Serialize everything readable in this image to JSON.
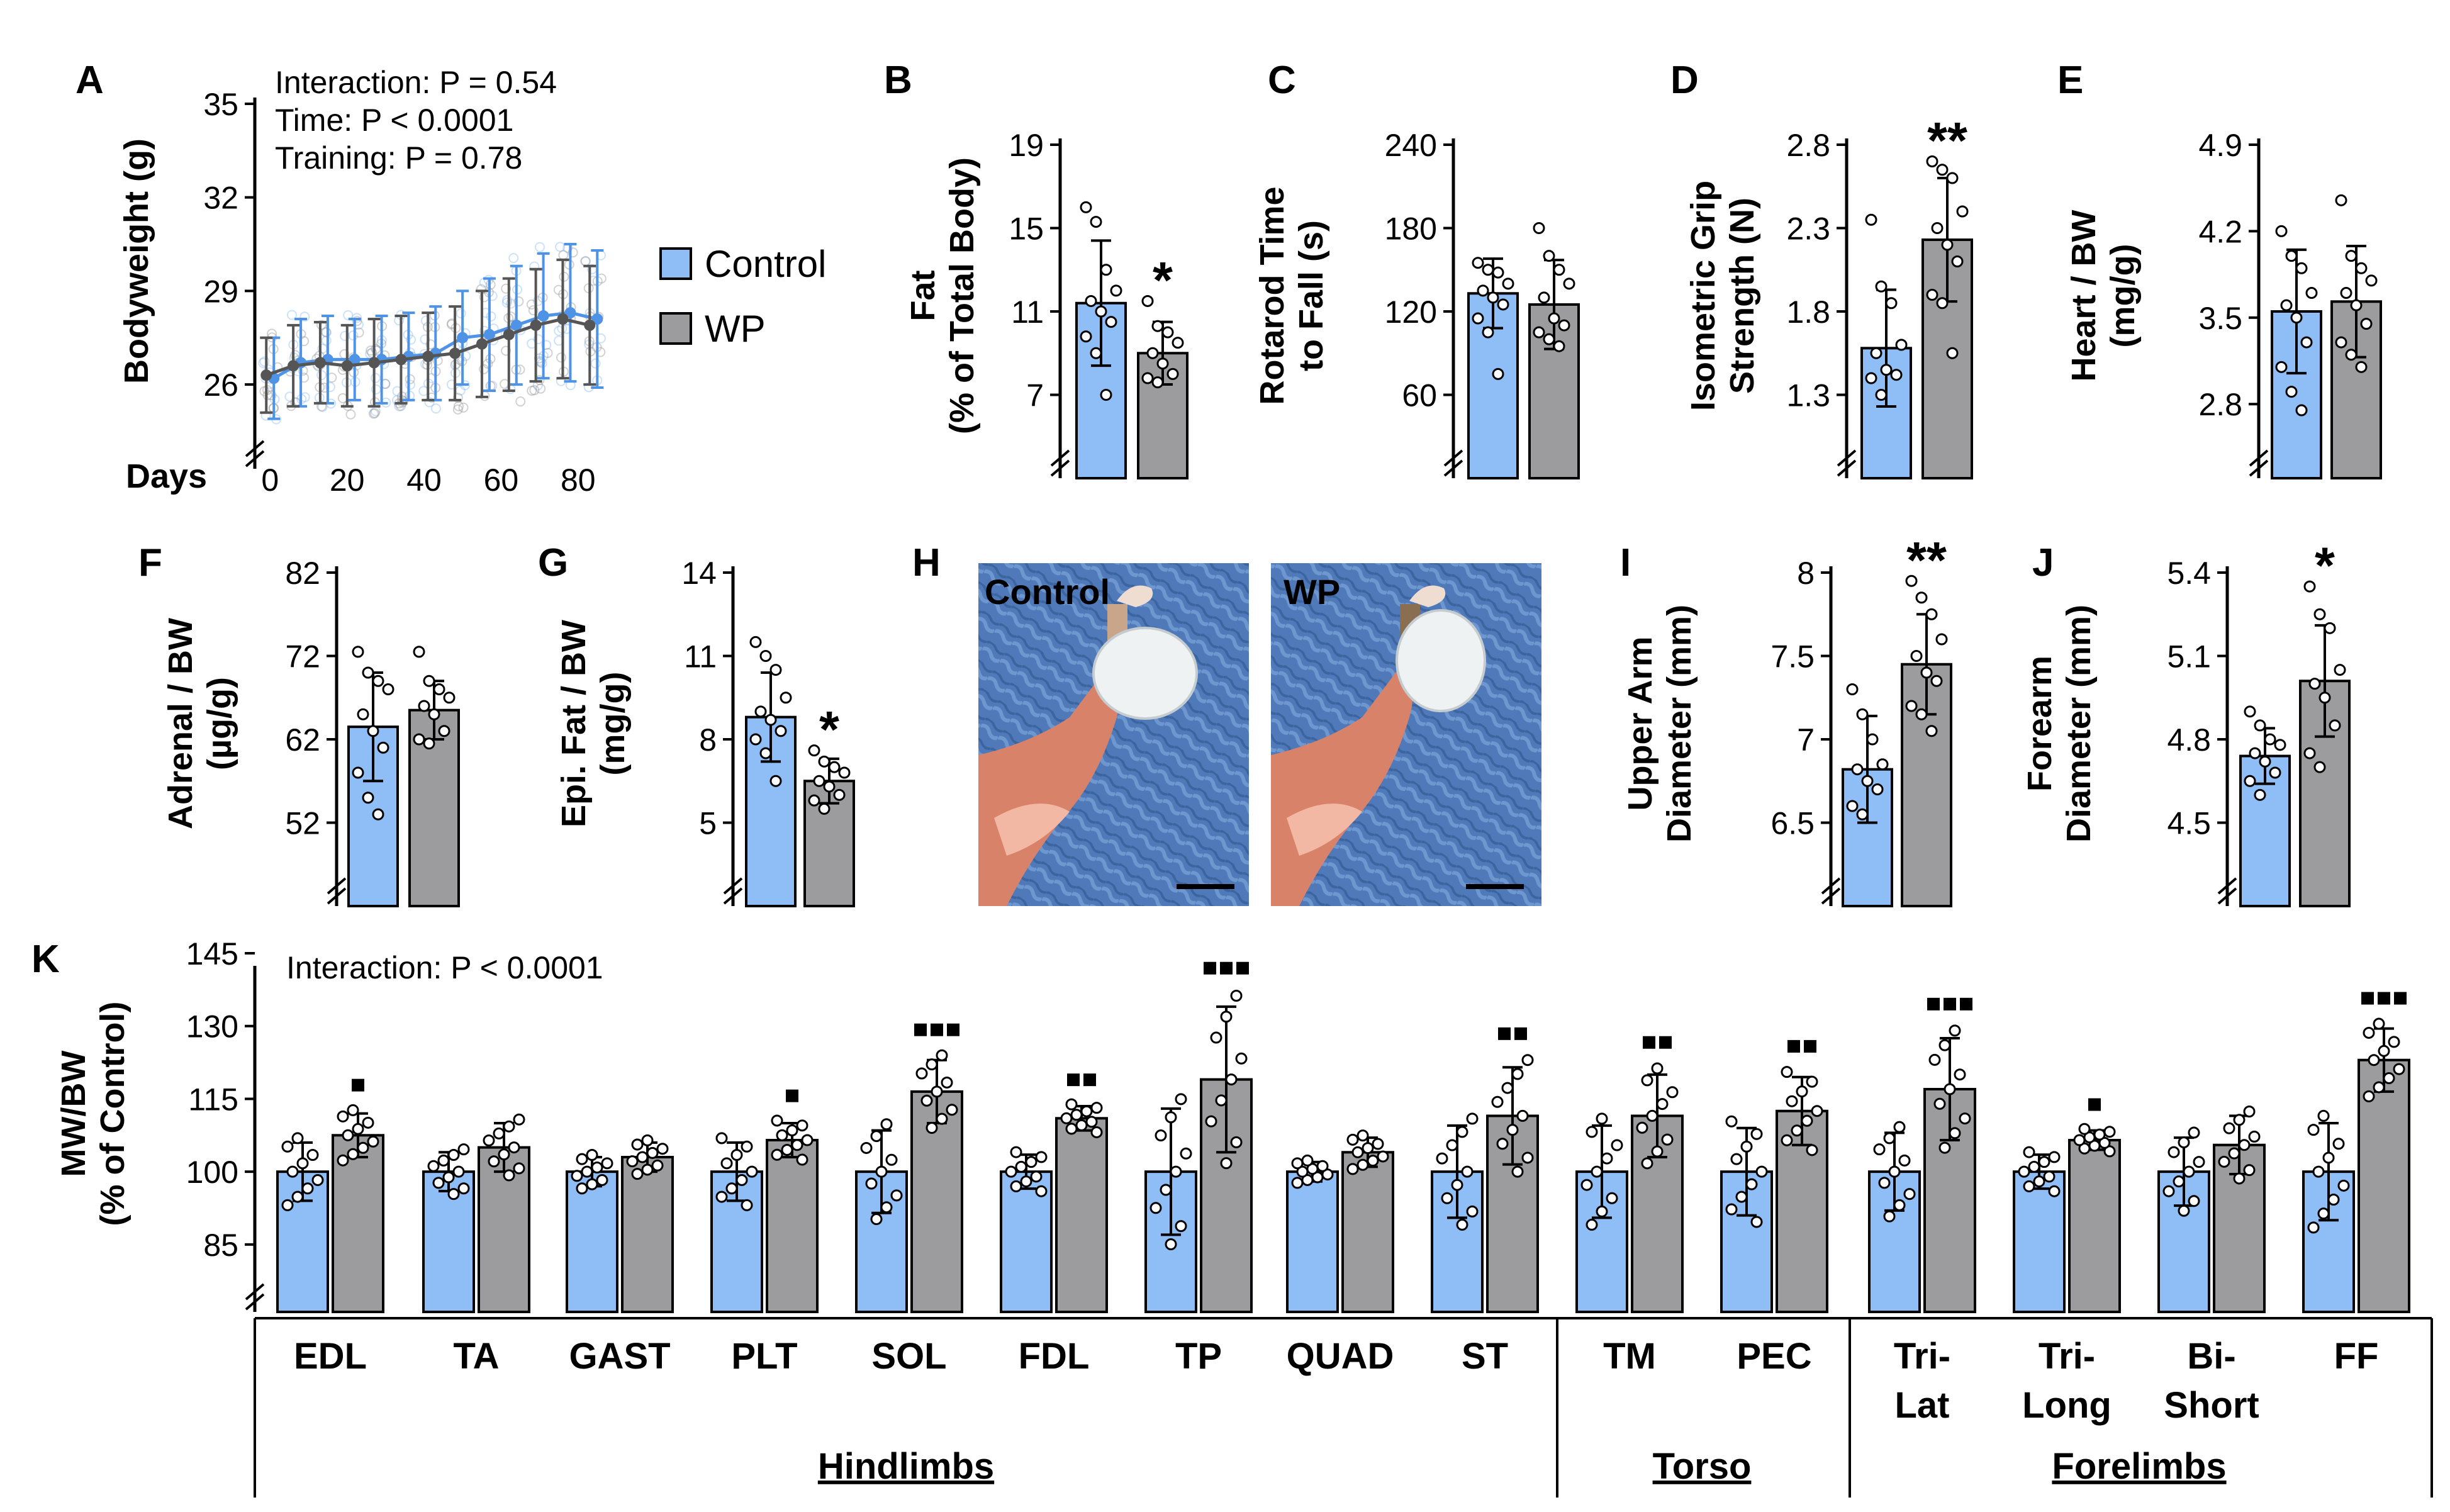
{
  "colors": {
    "control": "#8fbdf5",
    "wp": "#9c9c9e",
    "axis": "#000000",
    "dots": "#ffffff"
  },
  "legend": {
    "control": "Control",
    "wp": "WP"
  },
  "photo": {
    "panel_label": "H",
    "control_label": "Control",
    "wp_label": "WP"
  },
  "chart_data": [
    {
      "panel": "A",
      "type": "line",
      "ylabel": "Bodyweight (g)",
      "xlabel": "Days",
      "yticks": [
        26,
        29,
        32,
        35
      ],
      "ylim": [
        23.5,
        35
      ],
      "xticks": [
        0,
        20,
        40,
        60,
        80
      ],
      "xlim": [
        -2,
        90
      ],
      "annotations": [
        "Interaction: P = 0.54",
        "Time: P < 0.0001",
        "Training: P = 0.78"
      ],
      "x": [
        0,
        7,
        14,
        21,
        28,
        35,
        42,
        49,
        56,
        63,
        70,
        77,
        84
      ],
      "series": [
        {
          "name": "Control",
          "values": [
            26.2,
            26.7,
            26.8,
            26.8,
            26.8,
            26.9,
            27.0,
            27.5,
            27.6,
            27.9,
            28.2,
            28.3,
            28.1
          ],
          "sd": [
            1.3,
            1.4,
            1.4,
            1.3,
            1.4,
            1.4,
            1.5,
            1.5,
            1.8,
            1.9,
            2.0,
            2.2,
            2.2
          ]
        },
        {
          "name": "WP",
          "values": [
            26.3,
            26.6,
            26.7,
            26.6,
            26.7,
            26.8,
            26.9,
            27.0,
            27.3,
            27.6,
            27.9,
            28.1,
            27.9
          ],
          "sd": [
            1.2,
            1.3,
            1.3,
            1.3,
            1.4,
            1.4,
            1.4,
            1.5,
            1.7,
            1.8,
            1.8,
            1.9,
            1.9
          ]
        }
      ]
    },
    {
      "panel": "B",
      "type": "bar",
      "ylabel": [
        "Fat",
        "(% of Total Body)"
      ],
      "yticks": [
        7,
        11,
        15,
        19
      ],
      "ylim": [
        3,
        19
      ],
      "series": [
        {
          "name": "Control",
          "values": [
            11.4
          ],
          "sd": [
            3.0
          ]
        },
        {
          "name": "WP",
          "values": [
            9.0
          ],
          "sd": [
            1.5
          ]
        }
      ],
      "points": [
        [
          16.0,
          15.3,
          13.0,
          12.0,
          11.5,
          11.0,
          10.5,
          9.8,
          9.0,
          7.0
        ],
        [
          11.5,
          10.3,
          10.0,
          9.5,
          9.0,
          8.5,
          8.0,
          7.8,
          7.6
        ]
      ],
      "significance": "*"
    },
    {
      "panel": "C",
      "type": "bar",
      "ylabel": [
        "Rotarod Time",
        "to Fall (s)"
      ],
      "yticks": [
        60,
        120,
        180,
        240
      ],
      "ylim": [
        0,
        240
      ],
      "series": [
        {
          "name": "Control",
          "values": [
            133
          ],
          "sd": [
            25
          ]
        },
        {
          "name": "WP",
          "values": [
            125
          ],
          "sd": [
            32
          ]
        }
      ],
      "points": [
        [
          155,
          150,
          148,
          140,
          135,
          130,
          125,
          115,
          105,
          75
        ],
        [
          180,
          160,
          150,
          140,
          130,
          115,
          110,
          105,
          100,
          95
        ]
      ],
      "significance": ""
    },
    {
      "panel": "D",
      "type": "bar",
      "ylabel": [
        "Isometric Grip",
        "Strength (N)"
      ],
      "yticks": [
        1.3,
        1.8,
        2.3,
        2.8
      ],
      "ylim": [
        0.8,
        2.8
      ],
      "series": [
        {
          "name": "Control",
          "values": [
            1.58
          ],
          "sd": [
            0.35
          ]
        },
        {
          "name": "WP",
          "values": [
            2.23
          ],
          "sd": [
            0.37
          ]
        }
      ],
      "points": [
        [
          2.35,
          1.95,
          1.85,
          1.6,
          1.55,
          1.45,
          1.42,
          1.4,
          1.3
        ],
        [
          2.7,
          2.65,
          2.6,
          2.4,
          2.3,
          2.2,
          2.1,
          1.9,
          1.85,
          1.55
        ]
      ],
      "significance": "**"
    },
    {
      "panel": "E",
      "type": "bar",
      "ylabel": [
        "Heart / BW",
        "(mg/g)"
      ],
      "yticks": [
        2.8,
        3.5,
        4.2,
        4.9
      ],
      "ylim": [
        2.2,
        4.9
      ],
      "series": [
        {
          "name": "Control",
          "values": [
            3.55
          ],
          "sd": [
            0.5
          ]
        },
        {
          "name": "WP",
          "values": [
            3.63
          ],
          "sd": [
            0.45
          ]
        }
      ],
      "points": [
        [
          4.2,
          4.0,
          3.9,
          3.7,
          3.6,
          3.5,
          3.3,
          3.1,
          2.9,
          2.75
        ],
        [
          4.45,
          4.0,
          3.9,
          3.8,
          3.7,
          3.6,
          3.45,
          3.3,
          3.2,
          3.1
        ]
      ],
      "significance": ""
    },
    {
      "panel": "F",
      "type": "bar",
      "ylabel": [
        "Adrenal / BW",
        "(µg/g)"
      ],
      "yticks": [
        52,
        62,
        72,
        82
      ],
      "ylim": [
        42,
        82
      ],
      "series": [
        {
          "name": "Control",
          "values": [
            63.5
          ],
          "sd": [
            6.5
          ]
        },
        {
          "name": "WP",
          "values": [
            65.5
          ],
          "sd": [
            3.5
          ]
        }
      ],
      "points": [
        [
          72.5,
          70,
          69,
          68,
          65,
          63,
          61,
          58,
          55,
          53
        ],
        [
          72.5,
          69,
          68,
          67,
          66,
          65,
          63,
          62,
          61.5
        ]
      ],
      "significance": ""
    },
    {
      "panel": "G",
      "type": "bar",
      "ylabel": [
        "Epi. Fat / BW",
        "(mg/g)"
      ],
      "yticks": [
        5,
        8,
        11,
        14
      ],
      "ylim": [
        2,
        14
      ],
      "series": [
        {
          "name": "Control",
          "values": [
            8.8
          ],
          "sd": [
            1.6
          ]
        },
        {
          "name": "WP",
          "values": [
            6.5
          ],
          "sd": [
            0.8
          ]
        }
      ],
      "points": [
        [
          11.5,
          11.0,
          10.5,
          9.5,
          9.0,
          8.7,
          8.3,
          8.0,
          7.5,
          6.5
        ],
        [
          7.6,
          7.2,
          7.0,
          6.8,
          6.5,
          6.3,
          6.0,
          5.8,
          5.5
        ]
      ],
      "significance": "*"
    },
    {
      "panel": "I",
      "type": "bar",
      "ylabel": [
        "Upper Arm",
        "Diameter (mm)"
      ],
      "yticks": [
        6.5,
        7.0,
        7.5,
        8.0
      ],
      "ylim": [
        6.0,
        8.0
      ],
      "series": [
        {
          "name": "Control",
          "values": [
            6.82
          ],
          "sd": [
            0.32
          ]
        },
        {
          "name": "WP",
          "values": [
            7.45
          ],
          "sd": [
            0.3
          ]
        }
      ],
      "points": [
        [
          7.3,
          7.15,
          7.0,
          6.85,
          6.82,
          6.75,
          6.7,
          6.6,
          6.55
        ],
        [
          7.95,
          7.85,
          7.75,
          7.6,
          7.5,
          7.4,
          7.35,
          7.2,
          7.15,
          7.05
        ]
      ],
      "significance": "**"
    },
    {
      "panel": "J",
      "type": "bar",
      "ylabel": [
        "Forearm",
        "Diameter (mm)"
      ],
      "yticks": [
        4.5,
        4.8,
        5.1,
        5.4
      ],
      "ylim": [
        4.2,
        5.4
      ],
      "series": [
        {
          "name": "Control",
          "values": [
            4.74
          ],
          "sd": [
            0.1
          ]
        },
        {
          "name": "WP",
          "values": [
            5.01
          ],
          "sd": [
            0.2
          ]
        }
      ],
      "points": [
        [
          4.9,
          4.85,
          4.8,
          4.78,
          4.75,
          4.72,
          4.68,
          4.65,
          4.6
        ],
        [
          5.35,
          5.25,
          5.2,
          5.05,
          5.0,
          4.95,
          4.85,
          4.75,
          4.7
        ]
      ],
      "significance": "*"
    },
    {
      "panel": "K",
      "type": "bar",
      "ylabel": [
        "MW/BW",
        "(% of Control)"
      ],
      "yticks": [
        85,
        100,
        115,
        130,
        145
      ],
      "ylim": [
        75,
        145
      ],
      "annotations": [
        "Interaction: P < 0.0001"
      ],
      "categories": [
        "EDL",
        "TA",
        "GAST",
        "PLT",
        "SOL",
        "FDL",
        "TP",
        "QUAD",
        "ST",
        "TM",
        "PEC",
        "Tri-\nLat",
        "Tri-\nLong",
        "Bi-\nShort",
        "FF"
      ],
      "groups": [
        {
          "label": "Hindlimbs",
          "span": [
            0,
            8
          ]
        },
        {
          "label": "Torso",
          "span": [
            9,
            10
          ]
        },
        {
          "label": "Forelimbs",
          "span": [
            11,
            14
          ]
        }
      ],
      "series": [
        {
          "name": "Control",
          "values": [
            100,
            100,
            100,
            100,
            100,
            100,
            100,
            100,
            100,
            100,
            100,
            100,
            100,
            100,
            100
          ],
          "sd": [
            6,
            4,
            3,
            6,
            8.5,
            3.5,
            13,
            2,
            9.5,
            9.5,
            9,
            8,
            3.5,
            7,
            10
          ]
        },
        {
          "name": "WP",
          "values": [
            107.5,
            105,
            103,
            106.5,
            116.5,
            111,
            119,
            104,
            111.5,
            111.5,
            112.5,
            117,
            106.5,
            105.5,
            123
          ],
          "sd": [
            4.5,
            5,
            3,
            3.5,
            6.5,
            2.5,
            15,
            3,
            10,
            8.5,
            7,
            10.5,
            2,
            6,
            6.5
          ]
        }
      ],
      "significance_marks": [
        1,
        0,
        0,
        1,
        3,
        2,
        3,
        0,
        2,
        2,
        2,
        3,
        1,
        0,
        3
      ]
    }
  ]
}
